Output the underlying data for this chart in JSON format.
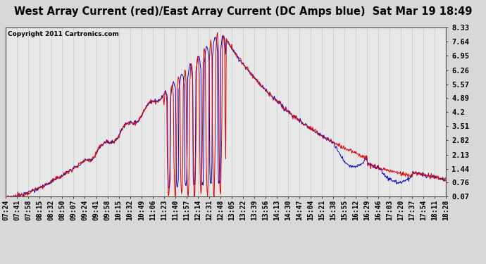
{
  "title": "West Array Current (red)/East Array Current (DC Amps blue)  Sat Mar 19 18:49",
  "copyright": "Copyright 2011 Cartronics.com",
  "ylabel_right_ticks": [
    8.33,
    7.64,
    6.95,
    6.26,
    5.57,
    4.89,
    4.2,
    3.51,
    2.82,
    2.13,
    1.44,
    0.76,
    0.07
  ],
  "ylim": [
    0.07,
    8.33
  ],
  "x_labels": [
    "07:24",
    "07:41",
    "07:58",
    "08:15",
    "08:32",
    "08:50",
    "09:07",
    "09:24",
    "09:41",
    "09:58",
    "10:15",
    "10:32",
    "10:49",
    "11:06",
    "11:23",
    "11:40",
    "11:57",
    "12:14",
    "12:31",
    "12:48",
    "13:05",
    "13:22",
    "13:39",
    "13:56",
    "14:13",
    "14:30",
    "14:47",
    "15:04",
    "15:21",
    "15:38",
    "15:55",
    "16:12",
    "16:29",
    "16:46",
    "17:03",
    "17:20",
    "17:37",
    "17:54",
    "18:11",
    "18:28"
  ],
  "background_color": "#d8d8d8",
  "plot_bg": "#e8e8e8",
  "red_color": "#dd0000",
  "blue_color": "#0000cc",
  "title_fontsize": 10.5,
  "tick_fontsize": 7,
  "grid_color": "#aaaaaa"
}
